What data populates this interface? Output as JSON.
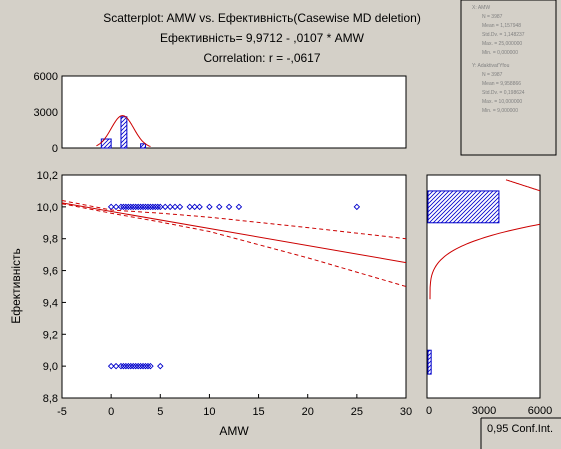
{
  "header": {
    "title": "Scatterplot: AMW     vs.   Ефективність(Casewise MD deletion)",
    "regression": "Ефективність= 9,9712 - ,0107  * AMW",
    "correlation": "Correlation: r = -,0617"
  },
  "stats_box": {
    "x_title": "X: AMW",
    "x_lines": [
      "N = 3987",
      "Mean = 1,157948",
      "Std.Dv. = 1,148237",
      "Max. = 25,000000",
      "Min. = 0,000000"
    ],
    "y_title": "Y: Adaktivat'Yfou",
    "y_lines": [
      "N = 3987",
      "Mean = 9,958866",
      "Std.Dv. = 0,198624",
      "Max. = 10,000000",
      "Min. = 9,000000"
    ]
  },
  "conf_box": {
    "label": "0,95 Conf.Int."
  },
  "colors": {
    "fit": "#cc0000",
    "points": "#0000cc",
    "background": "#d4d0c8",
    "plot_bg": "#ffffff"
  },
  "chart_data": [
    {
      "type": "scatter",
      "xlabel": "AMW",
      "ylabel": "Ефективність",
      "xlim": [
        -5,
        30
      ],
      "ylim": [
        8.8,
        10.2
      ],
      "xticks": [
        "-5",
        "0",
        "5",
        "10",
        "15",
        "20",
        "25",
        "30"
      ],
      "yticks": [
        "8,8",
        "9,0",
        "9,2",
        "9,4",
        "9,6",
        "9,8",
        "10,0",
        "10,2"
      ],
      "points_y10": [
        0,
        0.5,
        1,
        1.25,
        1.5,
        1.75,
        2,
        2.25,
        2.5,
        2.75,
        3,
        3.25,
        3.5,
        3.75,
        4,
        4.25,
        4.5,
        4.75,
        5,
        5.5,
        6,
        6.5,
        7,
        8,
        8.5,
        9,
        10,
        11,
        12,
        13,
        25
      ],
      "points_y9": [
        0,
        0.5,
        1,
        1.25,
        1.5,
        1.75,
        2,
        2.25,
        2.5,
        2.75,
        3,
        3.25,
        3.5,
        3.75,
        4,
        5
      ],
      "fit": {
        "intercept": 9.9712,
        "slope": -0.0107
      },
      "ci_lower": [
        [
          -5,
          10.02
        ],
        [
          0,
          9.96
        ],
        [
          5,
          9.905
        ],
        [
          10,
          9.845
        ],
        [
          20,
          9.68
        ],
        [
          30,
          9.5
        ]
      ],
      "ci_upper": [
        [
          -5,
          10.04
        ],
        [
          0,
          9.98
        ],
        [
          5,
          9.96
        ],
        [
          10,
          9.935
        ],
        [
          20,
          9.87
        ],
        [
          30,
          9.8
        ]
      ]
    },
    {
      "type": "bar",
      "orientation": "vertical",
      "title": "AMW histogram",
      "xlim": [
        -5,
        30
      ],
      "ylim": [
        0,
        6000
      ],
      "yticks": [
        "0",
        "3000",
        "6000"
      ],
      "bins": [
        [
          -1,
          0,
          750
        ],
        [
          1,
          1.6,
          2600
        ],
        [
          3,
          3.5,
          350
        ]
      ],
      "normal": {
        "mean": 1.157948,
        "sd": 1.148237,
        "peak": 2700
      }
    },
    {
      "type": "bar",
      "orientation": "horizontal",
      "title": "Ефективність histogram",
      "xlim": [
        0,
        6000
      ],
      "xticks": [
        "0",
        "3000",
        "6000"
      ],
      "bins": [
        [
          9.9,
          10.1,
          3800
        ],
        [
          8.95,
          9.1,
          170
        ]
      ]
    }
  ]
}
